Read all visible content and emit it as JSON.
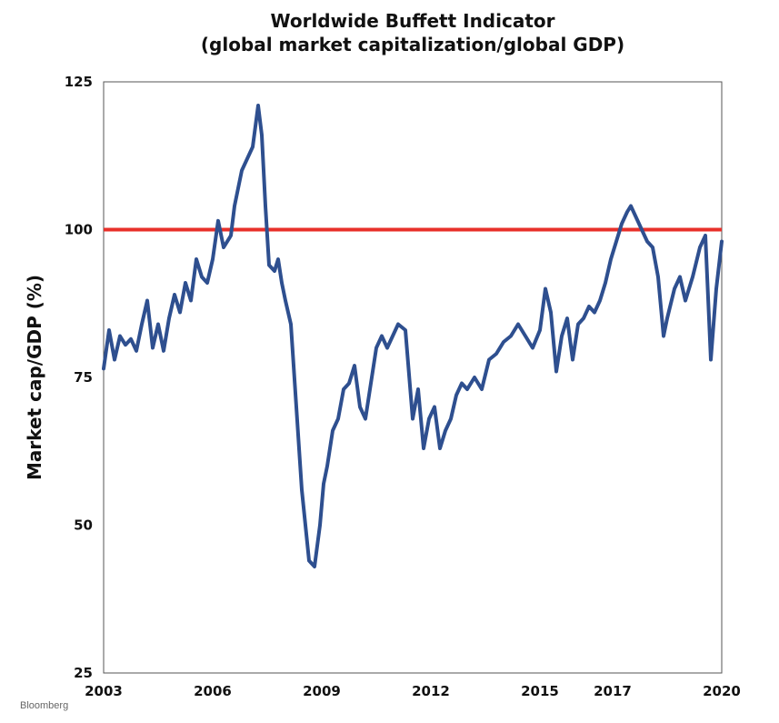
{
  "chart_data": {
    "type": "line",
    "title": "Worldwide Buffett Indicator",
    "subtitle": "(global market capitalization/global GDP)",
    "xlabel": "",
    "ylabel": "Market cap/GDP (%)",
    "xlim": [
      2003,
      2020
    ],
    "ylim": [
      25,
      125
    ],
    "grid": false,
    "legend": "none",
    "x_tick_labels": [
      "2003",
      "2006",
      "2009",
      "2012",
      "2015",
      "2017",
      "2020"
    ],
    "y_tick_labels": [
      "125",
      "100",
      "75",
      "50",
      "25"
    ],
    "y_ticks": [
      125,
      100,
      75,
      50,
      25
    ],
    "reference_line": {
      "y": 100,
      "color": "#e8302a"
    },
    "series": [
      {
        "color": "#2e4f8f",
        "x": [
          2003.0,
          2003.15,
          2003.3,
          2003.45,
          2003.6,
          2003.75,
          2003.9,
          2004.05,
          2004.2,
          2004.35,
          2004.5,
          2004.65,
          2004.8,
          2004.95,
          2005.1,
          2005.25,
          2005.4,
          2005.55,
          2005.7,
          2005.85,
          2006.0,
          2006.15,
          2006.3,
          2006.5,
          2006.6,
          2006.8,
          2006.95,
          2007.1,
          2007.25,
          2007.35,
          2007.45,
          2007.55,
          2007.7,
          2007.8,
          2007.9,
          2008.0,
          2008.15,
          2008.3,
          2008.45,
          2008.55,
          2008.65,
          2008.8,
          2008.95,
          2009.05,
          2009.15,
          2009.3,
          2009.45,
          2009.6,
          2009.75,
          2009.9,
          2010.05,
          2010.2,
          2010.35,
          2010.5,
          2010.65,
          2010.8,
          2010.95,
          2011.1,
          2011.3,
          2011.5,
          2011.65,
          2011.8,
          2011.95,
          2012.1,
          2012.25,
          2012.4,
          2012.55,
          2012.7,
          2012.85,
          2013.0,
          2013.2,
          2013.4,
          2013.6,
          2013.8,
          2014.0,
          2014.2,
          2014.4,
          2014.6,
          2014.8,
          2015.0,
          2015.15,
          2015.3,
          2015.45,
          2015.6,
          2015.75,
          2015.9,
          2016.05,
          2016.2,
          2016.35,
          2016.5,
          2016.65,
          2016.8,
          2016.95,
          2017.1,
          2017.25,
          2017.4,
          2017.5,
          2017.65,
          2017.8,
          2017.95,
          2018.1,
          2018.25,
          2018.4,
          2018.5,
          2018.7,
          2018.85,
          2019.0,
          2019.2,
          2019.4,
          2019.55,
          2019.7,
          2019.85,
          2020.0
        ],
        "values": [
          76.5,
          83,
          78,
          82,
          80.5,
          81.5,
          79.5,
          84,
          88,
          80,
          84,
          79.5,
          85,
          89,
          86,
          91,
          88,
          95,
          92,
          91,
          95,
          101.5,
          97,
          99,
          104,
          110,
          112,
          114,
          121,
          116,
          104,
          94,
          93,
          95,
          91,
          88,
          84,
          70,
          56,
          50,
          44,
          43,
          50,
          57,
          60,
          66,
          68,
          73,
          74,
          77,
          70,
          68,
          74,
          80,
          82,
          80,
          82,
          84,
          83,
          68,
          73,
          63,
          68,
          70,
          63,
          66,
          68,
          72,
          74,
          73,
          75,
          73,
          78,
          79,
          81,
          82,
          84,
          82,
          80,
          83,
          90,
          86,
          76,
          82,
          85,
          78,
          84,
          85,
          87,
          86,
          88,
          91,
          95,
          98,
          101,
          103,
          104,
          102,
          100,
          98,
          97,
          92,
          82,
          85,
          90,
          92,
          88,
          92,
          97,
          99,
          78,
          90,
          98
        ]
      }
    ]
  },
  "source": "Bloomberg"
}
